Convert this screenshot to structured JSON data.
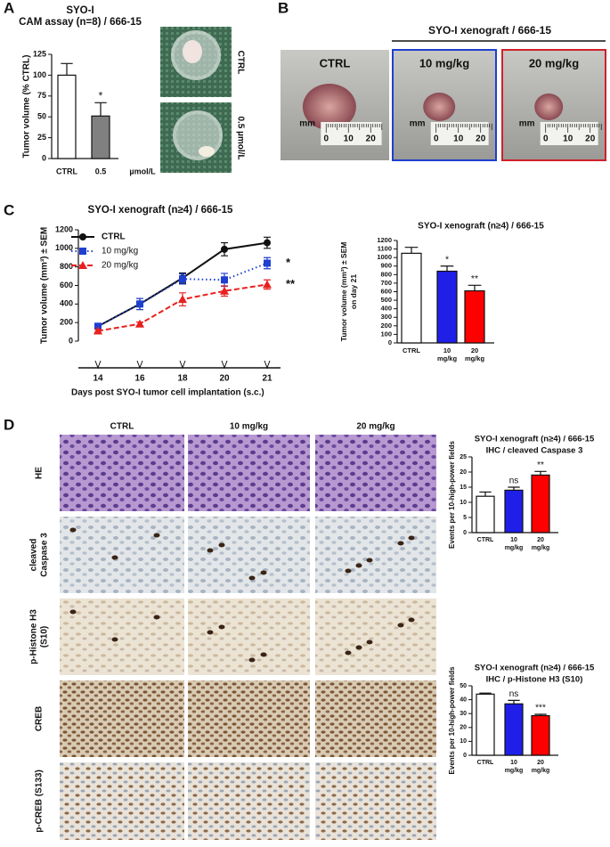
{
  "panel_labels": [
    "A",
    "B",
    "C",
    "D"
  ],
  "panel_a": {
    "photo_labels": [
      "CTRL",
      "0.5 µmol/L"
    ]
  },
  "panel_b": {
    "group_title": "SYO-I xenograft / 666-15",
    "photos": [
      {
        "label": "CTRL",
        "color": "#111111"
      },
      {
        "label": "10 mg/kg",
        "color": "#1f3fd0"
      },
      {
        "label": "20 mg/kg",
        "color": "#d0202a"
      }
    ],
    "ruler_unit": "mm",
    "ruler_labels": [
      "0",
      "10",
      "20"
    ]
  },
  "panel_d": {
    "columns": [
      {
        "label": "CTRL",
        "color": "#111111"
      },
      {
        "label": "10 mg/kg",
        "color": "#1f3fd0"
      },
      {
        "label": "20 mg/kg",
        "color": "#d0202a"
      }
    ],
    "rows": [
      [
        "HE"
      ],
      [
        "cleaved",
        "Caspase 3"
      ],
      [
        "p-Histone H3",
        "(S10)"
      ],
      [
        "CREB"
      ],
      [
        "p-CREB (S133)"
      ]
    ]
  },
  "chart_data": [
    {
      "type": "bar",
      "title": [
        "SYO-I",
        "CAM assay (n=8) / 666-15"
      ],
      "ylabel": [
        "Tumor volume (% CTRL)"
      ],
      "xlabel": "µmol/L",
      "categories": [
        [
          "CTRL"
        ],
        [
          "0.5"
        ]
      ],
      "values": [
        100,
        51
      ],
      "errors": [
        14,
        16
      ],
      "colors": [
        "#ffffff",
        "#808080"
      ],
      "annotations": [
        null,
        "*"
      ],
      "annotation_colors": [
        null,
        "#111111"
      ],
      "ylim": [
        0,
        125
      ],
      "yticks": [
        0,
        25,
        50,
        75,
        100,
        125
      ]
    },
    {
      "type": "line",
      "title": [
        "SYO-I xenograft (n≥4) / 666-15"
      ],
      "ylabel": [
        "Tumor volume (mm³) ± SEM"
      ],
      "xlabel": "Days post  SYO-I tumor cell implantation (s.c.)",
      "categories": [
        "14",
        "16",
        "18",
        "20",
        "21"
      ],
      "series": [
        {
          "name": "CTRL",
          "color": "#111111",
          "marker": "circle",
          "line_style": "solid",
          "values": [
            160,
            400,
            680,
            990,
            1060
          ],
          "errors": [
            25,
            60,
            55,
            70,
            60
          ],
          "annotation": null
        },
        {
          "name": "10 mg/kg",
          "color": "#1f3fd0",
          "marker": "square",
          "line_style": "dotted",
          "values": [
            160,
            400,
            670,
            660,
            840
          ],
          "errors": [
            25,
            60,
            55,
            70,
            60
          ],
          "annotation": "*"
        },
        {
          "name": "20 mg/kg",
          "color": "#e8201e",
          "marker": "triangle",
          "line_style": "dashed",
          "values": [
            110,
            185,
            450,
            540,
            610
          ],
          "errors": [
            15,
            20,
            70,
            55,
            50
          ],
          "annotation": "**"
        }
      ],
      "ylim": [
        0,
        1200
      ],
      "yticks": [
        0,
        200,
        400,
        600,
        800,
        1000,
        1200
      ]
    },
    {
      "type": "bar",
      "title": [
        "SYO-I xenograft (n≥4) / 666-15"
      ],
      "ylabel": [
        "Tumor volume (mm³) ± SEM",
        "on day 21"
      ],
      "categories": [
        [
          "CTRL"
        ],
        [
          "10",
          "mg/kg"
        ],
        [
          "20",
          "mg/kg"
        ]
      ],
      "values": [
        1050,
        840,
        610
      ],
      "errors": [
        70,
        60,
        65
      ],
      "colors": [
        "#ffffff",
        "#1f1fe8",
        "#ff0000"
      ],
      "annotations": [
        null,
        "*",
        "**"
      ],
      "annotation_colors": [
        null,
        "#1f3fd0",
        "#e8201e"
      ],
      "ylim": [
        0,
        1200
      ],
      "yticks": [
        0,
        100,
        200,
        300,
        400,
        500,
        600,
        700,
        800,
        900,
        1000,
        1100,
        1200
      ]
    },
    {
      "type": "bar",
      "title": [
        "SYO-I xenograft (n≥4) / 666-15",
        "IHC / cleaved Caspase 3"
      ],
      "ylabel": [
        "Events per 10-high-power fields"
      ],
      "categories": [
        [
          "CTRL"
        ],
        [
          "10",
          "mg/kg"
        ],
        [
          "20",
          "mg/kg"
        ]
      ],
      "values": [
        12,
        14,
        19
      ],
      "errors": [
        1.4,
        1,
        1.2
      ],
      "colors": [
        "#ffffff",
        "#1f1fe8",
        "#ff0000"
      ],
      "annotations": [
        null,
        "ns",
        "**"
      ],
      "annotation_colors": [
        null,
        "#1f3fd0",
        "#e8201e"
      ],
      "ylim": [
        0,
        25
      ],
      "yticks": [
        0,
        5,
        10,
        15,
        20,
        25
      ]
    },
    {
      "type": "bar",
      "title": [
        "SYO-I xenograft (n≥4) / 666-15",
        "IHC / p-Histone H3 (S10)"
      ],
      "ylabel": [
        "Events per 10-high-power fields"
      ],
      "categories": [
        [
          "CTRL"
        ],
        [
          "10",
          "mg/kg"
        ],
        [
          "20",
          "mg/kg"
        ]
      ],
      "values": [
        44,
        37,
        28.5
      ],
      "errors": [
        0.7,
        2.5,
        1
      ],
      "colors": [
        "#ffffff",
        "#1f1fe8",
        "#ff0000"
      ],
      "annotations": [
        null,
        "ns",
        "***"
      ],
      "annotation_colors": [
        null,
        "#1f3fd0",
        "#e8201e"
      ],
      "ylim": [
        0,
        50
      ],
      "yticks": [
        0,
        10,
        20,
        30,
        40,
        50
      ]
    }
  ]
}
